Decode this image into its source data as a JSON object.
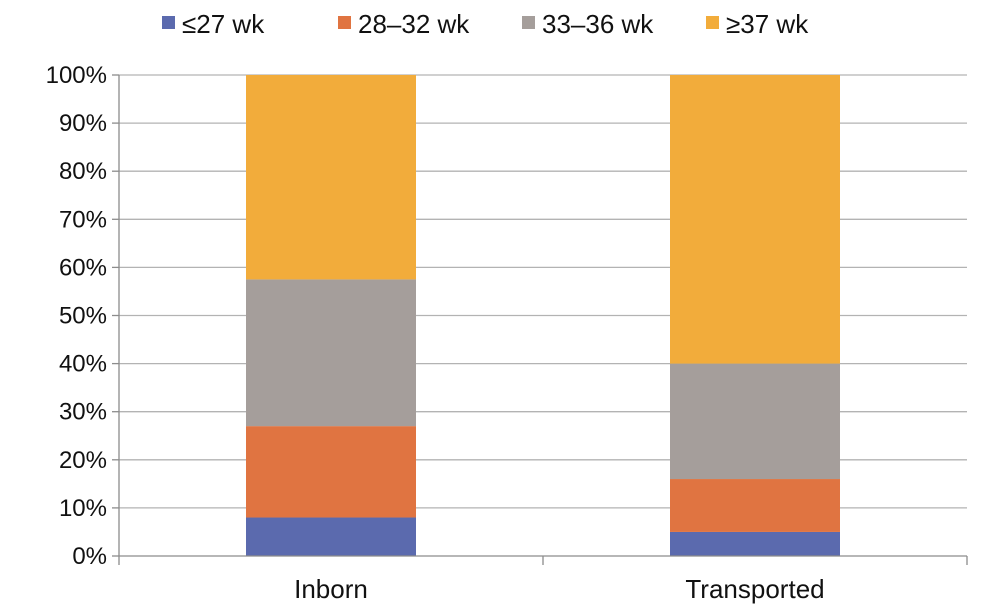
{
  "chart_data": {
    "type": "bar",
    "stacked": true,
    "categories": [
      "Inborn",
      "Transported"
    ],
    "series": [
      {
        "name": "≤27 wk",
        "color": "#5b6aae",
        "values": [
          8,
          5
        ]
      },
      {
        "name": "28–32 wk",
        "color": "#e07441",
        "values": [
          19,
          11
        ]
      },
      {
        "name": "33–36 wk",
        "color": "#a59e9b",
        "values": [
          30.5,
          24
        ]
      },
      {
        "name": "≥37 wk",
        "color": "#f2ac3b",
        "values": [
          42.5,
          60
        ]
      }
    ],
    "yticks": [
      "0%",
      "10%",
      "20%",
      "30%",
      "40%",
      "50%",
      "60%",
      "70%",
      "80%",
      "90%",
      "100%"
    ],
    "ylim": [
      0,
      100
    ],
    "grid": true,
    "legend_position": "top"
  }
}
